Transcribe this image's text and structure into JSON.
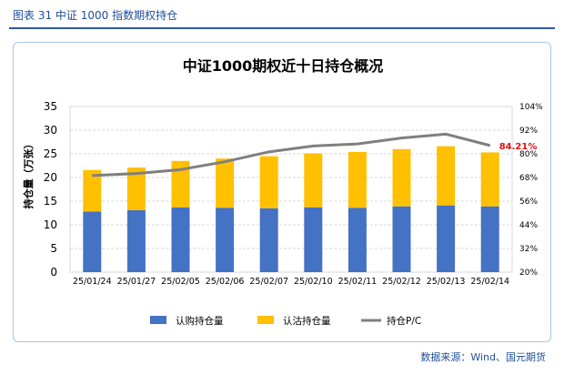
{
  "figure": {
    "caption": "图表 31  中证 1000 指数期权持仓",
    "source": "数据来源：Wind、国元期货"
  },
  "chart_data": {
    "type": "bar",
    "title": "中证1000期权近十日持仓概况",
    "ylabel": "持仓量（万张）",
    "categories": [
      "25/01/24",
      "25/01/27",
      "25/02/05",
      "25/02/06",
      "25/02/07",
      "25/02/10",
      "25/02/11",
      "25/02/12",
      "25/02/13",
      "25/02/14"
    ],
    "stacked": true,
    "ylim": [
      0,
      35
    ],
    "yticks": [
      0,
      5,
      10,
      15,
      20,
      25,
      30,
      35
    ],
    "y2lim": [
      0.2,
      1.04
    ],
    "y2ticks": [
      "20%",
      "32%",
      "44%",
      "56%",
      "68%",
      "80%",
      "92%",
      "104%"
    ],
    "grid": true,
    "legend": "bottom",
    "series": [
      {
        "name": "认购持仓量",
        "type": "bar",
        "color": "#4472c4",
        "values": [
          12.8,
          13.1,
          13.7,
          13.6,
          13.5,
          13.7,
          13.6,
          13.9,
          14.1,
          13.9
        ]
      },
      {
        "name": "认沽持仓量",
        "type": "bar",
        "color": "#ffc000",
        "values": [
          8.8,
          9.0,
          9.8,
          10.4,
          11.0,
          11.4,
          11.8,
          12.1,
          12.5,
          11.4
        ]
      },
      {
        "name": "持仓P/C",
        "type": "line",
        "axis": "y2",
        "color": "#7f7f7f",
        "values": [
          0.69,
          0.7,
          0.72,
          0.76,
          0.81,
          0.84,
          0.85,
          0.88,
          0.9,
          0.8421
        ]
      }
    ],
    "annotation": {
      "text": "84.21%",
      "color": "#e01010"
    }
  }
}
